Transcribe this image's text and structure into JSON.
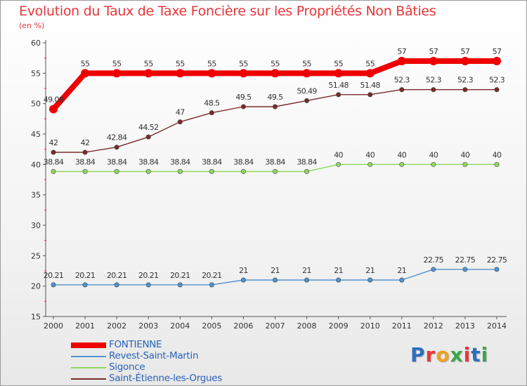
{
  "brand": {
    "name": "Proxiti",
    "letter_colors": [
      "#2b6fc0",
      "#e8363a",
      "#f0a020",
      "#3aa845",
      "#e8363a",
      "#2b6fc0",
      "#3aa845"
    ]
  },
  "chart_data": {
    "type": "line",
    "title": "Evolution du Taux de Taxe Foncière sur les Propriétés Non Bâties",
    "ylabel": "(en %)",
    "xlabel": "",
    "ylim": [
      15,
      60
    ],
    "yticks": [
      15,
      20,
      25,
      30,
      35,
      40,
      45,
      50,
      55,
      60
    ],
    "grid": false,
    "legend_position": "bottom-left",
    "x": [
      2000,
      2001,
      2002,
      2003,
      2004,
      2005,
      2006,
      2007,
      2008,
      2009,
      2010,
      2011,
      2012,
      2013,
      2014
    ],
    "series": [
      {
        "name": "FONTIENNE",
        "color": "#ee0000",
        "emphasis": true,
        "values": [
          49.09,
          55,
          55,
          55,
          55,
          55,
          55,
          55,
          55,
          55,
          55,
          57,
          57,
          57,
          57
        ],
        "labels": [
          "49.09",
          "55",
          "55",
          "55",
          "55",
          "55",
          "55",
          "55",
          "55",
          "55",
          "55",
          "57",
          "57",
          "57",
          "57"
        ]
      },
      {
        "name": "Revest-Saint-Martin",
        "color": "#4f93d0",
        "emphasis": false,
        "values": [
          20.21,
          20.21,
          20.21,
          20.21,
          20.21,
          20.21,
          21,
          21,
          21,
          21,
          21,
          21,
          22.75,
          22.75,
          22.75
        ],
        "labels": [
          "20.21",
          "20.21",
          "20.21",
          "20.21",
          "20.21",
          "20.21",
          "21",
          "21",
          "21",
          "21",
          "21",
          "21",
          "22.75",
          "22.75",
          "22.75"
        ]
      },
      {
        "name": "Sigonce",
        "color": "#90d860",
        "emphasis": false,
        "values": [
          38.84,
          38.84,
          38.84,
          38.84,
          38.84,
          38.84,
          38.84,
          38.84,
          38.84,
          40,
          40,
          40,
          40,
          40,
          40
        ],
        "labels": [
          "38.84",
          "38.84",
          "38.84",
          "38.84",
          "38.84",
          "38.84",
          "38.84",
          "38.84",
          "38.84",
          "40",
          "40",
          "40",
          "40",
          "40",
          "40"
        ]
      },
      {
        "name": "Saint-Étienne-les-Orgues",
        "color": "#7a2a2a",
        "emphasis": false,
        "values": [
          42,
          42,
          42.84,
          44.52,
          47,
          48.5,
          49.5,
          49.5,
          50.49,
          51.48,
          51.48,
          52.3,
          52.3,
          52.3,
          52.3
        ],
        "labels": [
          "42",
          "42",
          "42.84",
          "44.52",
          "47",
          "48.5",
          "49.5",
          "49.5",
          "50.49",
          "51.48",
          "51.48",
          "52.3",
          "52.3",
          "52.3",
          "52.3"
        ]
      }
    ]
  }
}
